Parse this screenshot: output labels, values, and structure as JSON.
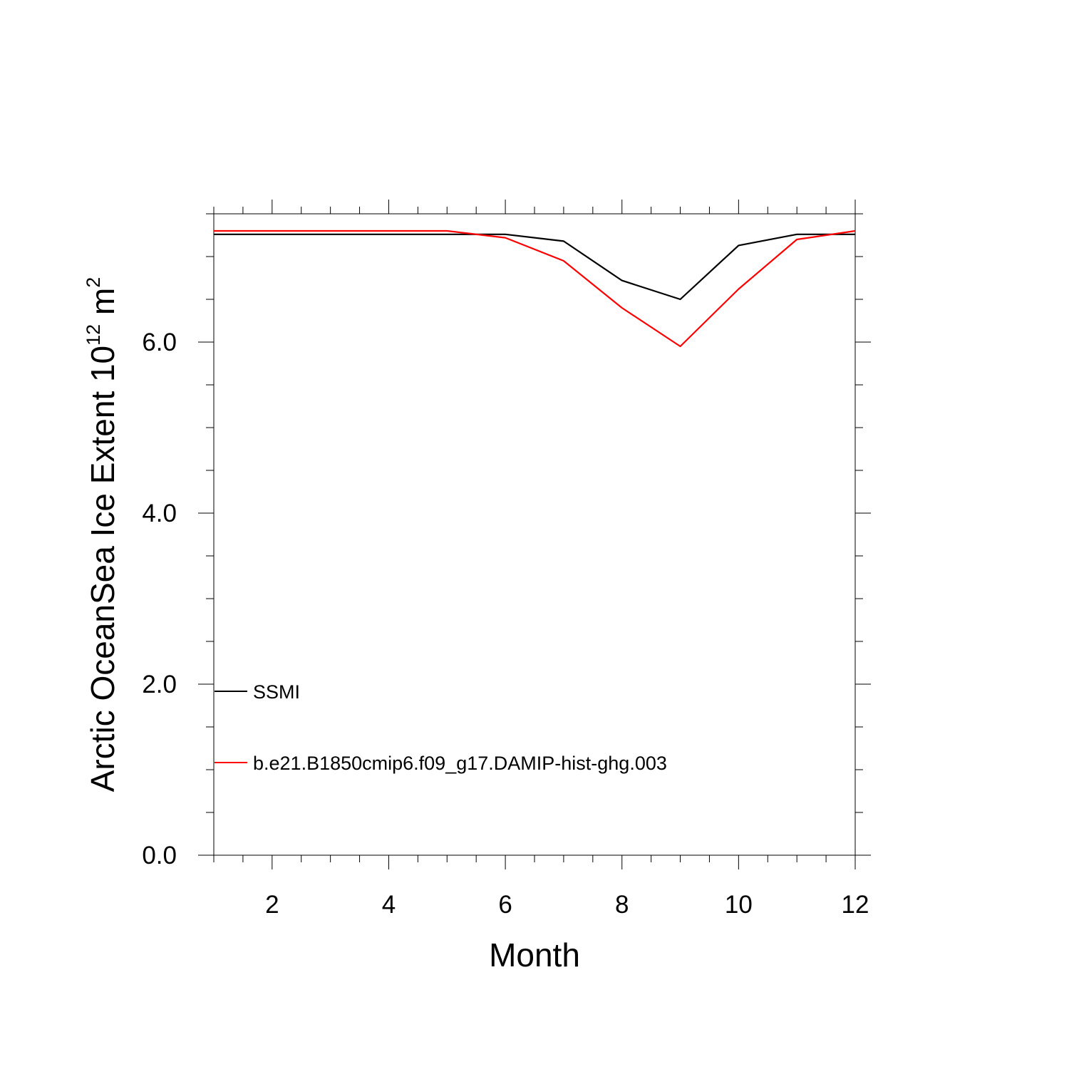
{
  "chart_data": {
    "type": "line",
    "title": "",
    "xlabel": "Month",
    "ylabel": {
      "main": "Arctic OceanSea Ice Extent 10",
      "exponent": "12",
      "unit": " m",
      "unit_exponent": "2"
    },
    "xlim": [
      1,
      12
    ],
    "ylim": [
      0,
      7.5
    ],
    "x_major_ticks": [
      2,
      4,
      6,
      8,
      10,
      12
    ],
    "x_tick_labels": [
      "2",
      "4",
      "6",
      "8",
      "10",
      "12"
    ],
    "y_major_ticks": [
      0,
      2,
      4,
      6
    ],
    "y_tick_labels": [
      "0.0",
      "2.0",
      "4.0",
      "6.0"
    ],
    "grid": false,
    "legend_position": "bottom-left",
    "x": [
      1,
      2,
      3,
      4,
      5,
      6,
      7,
      8,
      9,
      10,
      11,
      12
    ],
    "series": [
      {
        "name": "SSMI",
        "color": "#000000",
        "values": [
          7.26,
          7.26,
          7.26,
          7.26,
          7.26,
          7.26,
          7.18,
          6.72,
          6.5,
          7.13,
          7.26,
          7.26
        ]
      },
      {
        "name": "b.e21.B1850cmip6.f09_g17.DAMIP-hist-ghg.003",
        "color": "#ff0000",
        "values": [
          7.3,
          7.3,
          7.3,
          7.3,
          7.3,
          7.22,
          6.95,
          6.4,
          5.95,
          6.62,
          7.2,
          7.3
        ]
      }
    ]
  }
}
